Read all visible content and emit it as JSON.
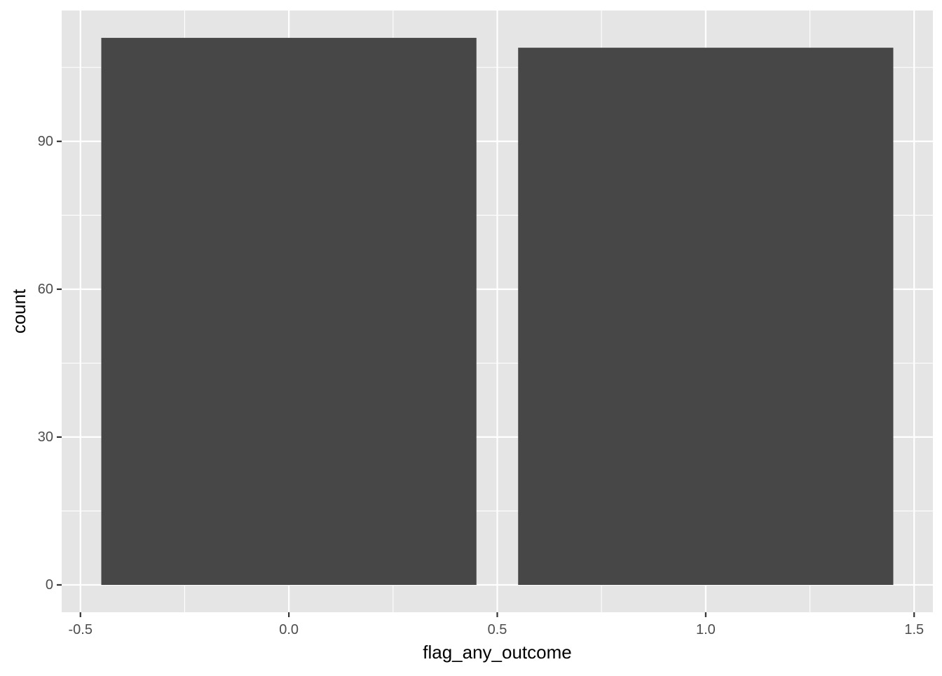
{
  "chart_data": {
    "type": "bar",
    "title": "",
    "xlabel": "flag_any_outcome",
    "ylabel": "count",
    "x": [
      0,
      1
    ],
    "values": [
      111,
      109
    ],
    "bar_width": 0.9,
    "xlim": [
      -0.545,
      1.545
    ],
    "ylim": [
      -5.55,
      116.55
    ],
    "x_ticks": [
      -0.5,
      0.0,
      0.5,
      1.0,
      1.5
    ],
    "x_tick_labels": [
      "-0.5",
      "0.0",
      "0.5",
      "1.0",
      "1.5"
    ],
    "x_minor_ticks": [
      -0.25,
      0.25,
      0.75,
      1.25
    ],
    "y_ticks": [
      0,
      30,
      60,
      90
    ],
    "y_tick_labels": [
      "0",
      "30",
      "60",
      "90"
    ],
    "y_minor_ticks": [
      15,
      45,
      75,
      105
    ],
    "grid": true,
    "legend": "none",
    "colors": {
      "panel_background": "#e5e5e5",
      "grid": "#ffffff",
      "bar_fill": "#474747",
      "tick_text": "#4d4d4d",
      "tick_mark": "#333333",
      "axis_title": "#000000"
    }
  }
}
